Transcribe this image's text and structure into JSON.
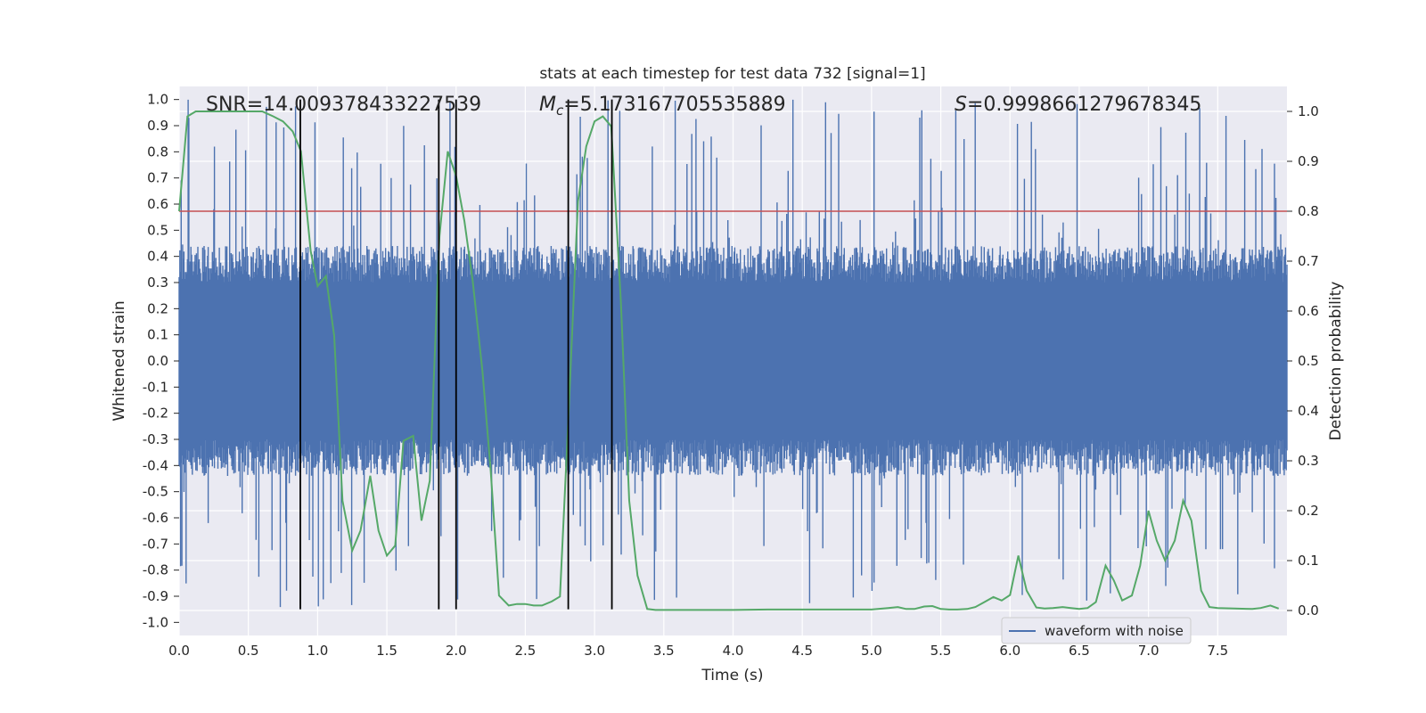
{
  "chart_data": {
    "type": "line",
    "title": "stats at each timestep for test data 732 [signal=1]",
    "xlabel": "Time (s)",
    "ylabel_left": "Whitened strain",
    "ylabel_right": "Detection probability",
    "xlim": [
      0.0,
      8.0
    ],
    "ylim_left": [
      -1.05,
      1.05
    ],
    "ylim_right": [
      -0.05,
      1.05
    ],
    "x_ticks": [
      "0.0",
      "0.5",
      "1.0",
      "1.5",
      "2.0",
      "2.5",
      "3.0",
      "3.5",
      "4.0",
      "4.5",
      "5.0",
      "5.5",
      "6.0",
      "6.5",
      "7.0",
      "7.5"
    ],
    "y_left_ticks": [
      "1.0",
      "0.9",
      "0.8",
      "0.7",
      "0.6",
      "0.5",
      "0.4",
      "0.3",
      "0.2",
      "0.1",
      "0.0",
      "-0.1",
      "-0.2",
      "-0.3",
      "-0.4",
      "-0.5",
      "-0.6",
      "-0.7",
      "-0.8",
      "-0.9",
      "-1.0"
    ],
    "y_right_ticks": [
      "1.0",
      "0.9",
      "0.8",
      "0.7",
      "0.6",
      "0.5",
      "0.4",
      "0.3",
      "0.2",
      "0.1",
      "0.0"
    ],
    "grid": true,
    "legend_position": "lower-right",
    "annotations": {
      "snr": "SNR=14.009378433227539",
      "mc_symbol": "M",
      "mc_sub": "c",
      "mc_value": "=5.173167705535889",
      "s_symbol": "S",
      "s_value": "=0.9998661279678345"
    },
    "threshold": {
      "value_right": 0.8,
      "color": "#c44e52"
    },
    "vertical_lines": [
      0.875,
      1.875,
      2.0,
      2.81,
      3.125
    ],
    "vertical_line_range_left": [
      -0.95,
      1.0
    ],
    "series": [
      {
        "name": "waveform with noise",
        "color": "#4c72b0",
        "axis": "left",
        "kind": "noise",
        "envelope": {
          "typical_pos": 0.4,
          "typical_neg": -0.4,
          "max_pos": 1.0,
          "min_neg": -0.95
        }
      },
      {
        "color": "#55a868",
        "axis": "right",
        "x": [
          0.0,
          0.06,
          0.12,
          0.2,
          0.3,
          0.4,
          0.5,
          0.6,
          0.68,
          0.75,
          0.82,
          0.88,
          0.95,
          1.0,
          1.06,
          1.12,
          1.18,
          1.25,
          1.31,
          1.38,
          1.44,
          1.5,
          1.56,
          1.62,
          1.69,
          1.75,
          1.81,
          1.88,
          1.94,
          2.0,
          2.06,
          2.12,
          2.19,
          2.25,
          2.31,
          2.38,
          2.44,
          2.5,
          2.56,
          2.62,
          2.69,
          2.75,
          2.81,
          2.88,
          2.94,
          3.0,
          3.06,
          3.12,
          3.19,
          3.25,
          3.31,
          3.38,
          3.44,
          3.5,
          3.75,
          4.0,
          4.25,
          4.5,
          4.75,
          5.0,
          5.12,
          5.19,
          5.25,
          5.31,
          5.38,
          5.44,
          5.5,
          5.56,
          5.62,
          5.69,
          5.75,
          5.81,
          5.88,
          5.94,
          6.0,
          6.06,
          6.12,
          6.19,
          6.25,
          6.31,
          6.38,
          6.44,
          6.5,
          6.56,
          6.62,
          6.69,
          6.75,
          6.81,
          6.88,
          6.94,
          7.0,
          7.06,
          7.12,
          7.19,
          7.25,
          7.31,
          7.38,
          7.44,
          7.5,
          7.62,
          7.75,
          7.81,
          7.88,
          7.94
        ],
        "y": [
          0.8,
          0.99,
          1.0,
          1.0,
          1.0,
          1.0,
          1.0,
          1.0,
          0.99,
          0.98,
          0.96,
          0.92,
          0.72,
          0.65,
          0.67,
          0.55,
          0.22,
          0.12,
          0.16,
          0.27,
          0.16,
          0.11,
          0.13,
          0.34,
          0.35,
          0.18,
          0.26,
          0.75,
          0.92,
          0.87,
          0.78,
          0.66,
          0.48,
          0.28,
          0.03,
          0.01,
          0.013,
          0.013,
          0.01,
          0.01,
          0.018,
          0.028,
          0.38,
          0.82,
          0.93,
          0.98,
          0.99,
          0.97,
          0.62,
          0.22,
          0.07,
          0.003,
          0.001,
          0.001,
          0.001,
          0.001,
          0.002,
          0.002,
          0.002,
          0.002,
          0.005,
          0.007,
          0.003,
          0.003,
          0.008,
          0.009,
          0.003,
          0.002,
          0.002,
          0.003,
          0.007,
          0.016,
          0.027,
          0.02,
          0.031,
          0.11,
          0.04,
          0.006,
          0.004,
          0.005,
          0.007,
          0.005,
          0.003,
          0.005,
          0.017,
          0.09,
          0.06,
          0.02,
          0.03,
          0.09,
          0.2,
          0.14,
          0.1,
          0.14,
          0.22,
          0.18,
          0.04,
          0.007,
          0.005,
          0.004,
          0.003,
          0.005,
          0.01,
          0.004
        ]
      }
    ]
  }
}
